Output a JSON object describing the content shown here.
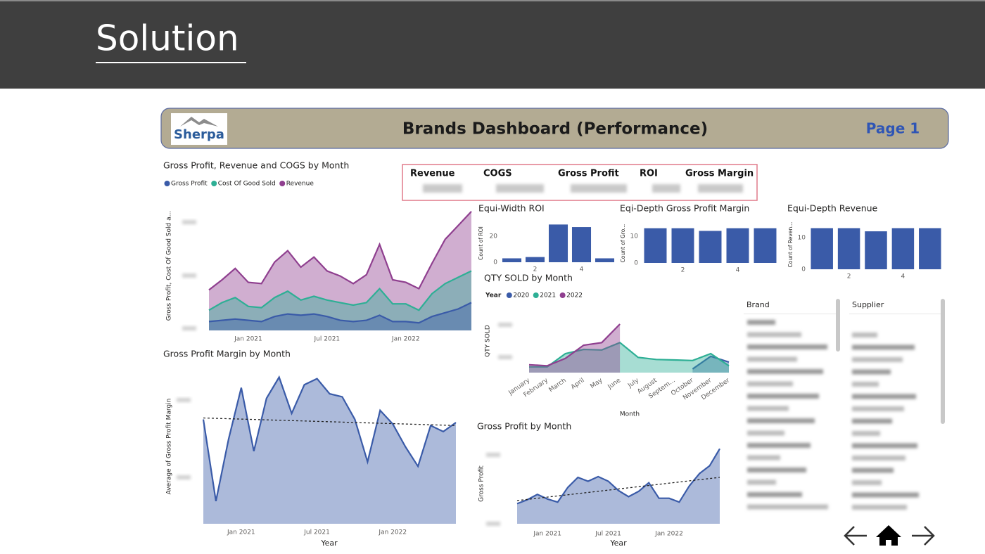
{
  "header": {
    "title": "Solution"
  },
  "dashboard": {
    "logo": "Sherpa",
    "title": "Brands Dashboard (Performance)",
    "page": "Page 1"
  },
  "kpis": [
    "Revenue",
    "COGS",
    "Gross Profit",
    "ROI",
    "Gross Margin"
  ],
  "slicers": [
    "Brand",
    "Supplier"
  ],
  "chart_data": [
    {
      "type": "area",
      "title": "Gross Profit, Revenue and COGS by Month",
      "y_label": "Gross Profit, Cost Of Good Sold a...",
      "categories": [
        null,
        null,
        null,
        "Jan 2021",
        null,
        null,
        null,
        null,
        null,
        "Jul 2021",
        null,
        null,
        null,
        null,
        null,
        "Jan 2022",
        null,
        null,
        null,
        null,
        null
      ],
      "ylim": [
        0,
        100
      ],
      "series": [
        {
          "name": "Gross Profit",
          "color": "#3a5ba8",
          "values": [
            7,
            8,
            9,
            8,
            7,
            11,
            13,
            12,
            13,
            11,
            8,
            7,
            8,
            12,
            7,
            7,
            6,
            11,
            14,
            17,
            22
          ]
        },
        {
          "name": "Cost Of Good Sold",
          "color": "#2eaf95",
          "values": [
            16,
            22,
            26,
            19,
            18,
            26,
            31,
            24,
            27,
            24,
            22,
            20,
            22,
            33,
            21,
            21,
            16,
            29,
            37,
            42,
            47
          ]
        },
        {
          "name": "Revenue",
          "color": "#8f3f8f",
          "values": [
            32,
            40,
            49,
            38,
            37,
            54,
            63,
            50,
            58,
            47,
            43,
            37,
            44,
            68,
            40,
            38,
            33,
            53,
            72,
            83,
            94
          ]
        }
      ]
    },
    {
      "type": "area",
      "title": "Gross Profit Margin by Month",
      "y_label": "Average of Gross Profit Margin",
      "x_label": "Year",
      "categories": [
        null,
        null,
        null,
        "Jan 2021",
        null,
        null,
        null,
        null,
        null,
        "Jul 2021",
        null,
        null,
        null,
        null,
        null,
        "Jan 2022",
        null,
        null,
        null,
        null,
        null
      ],
      "ylim": [
        0,
        100
      ],
      "series": [
        {
          "color": "#3a5ba8",
          "values": [
            69,
            15,
            56,
            90,
            48,
            83,
            97,
            73,
            92,
            96,
            86,
            84,
            69,
            41,
            75,
            66,
            51,
            38,
            65,
            61,
            67
          ]
        }
      ],
      "trend": [
        70,
        65
      ]
    },
    {
      "type": "bar",
      "title": "Equi-Width ROI",
      "y_label": "Count of ROI",
      "categories": [
        null,
        "2",
        null,
        "4",
        null
      ],
      "values": [
        3,
        4,
        29,
        27,
        3
      ],
      "color": "#3a5ba8",
      "ylim": [
        0,
        30
      ],
      "yticks": [
        0,
        20
      ]
    },
    {
      "type": "bar",
      "title": "Eqi-Depth Gross Profit Margin",
      "y_label": "Count of Gro...",
      "categories": [
        null,
        "2",
        null,
        "4",
        null
      ],
      "values": [
        13,
        13,
        12,
        13,
        13
      ],
      "color": "#3a5ba8",
      "ylim": [
        0,
        15
      ],
      "yticks": [
        0,
        10
      ]
    },
    {
      "type": "bar",
      "title": "Equi-Depth Revenue",
      "y_label": "Count of Reven...",
      "categories": [
        null,
        "2",
        null,
        "4",
        null
      ],
      "values": [
        13,
        13,
        12,
        13,
        13
      ],
      "color": "#3a5ba8",
      "ylim": [
        0,
        15
      ],
      "yticks": [
        0,
        10
      ]
    },
    {
      "type": "area",
      "title": "QTY SOLD by Month",
      "legend_title": "Year",
      "y_label": "QTY SOLD",
      "x_label": "Month",
      "categories": [
        "January",
        "February",
        "March",
        "April",
        "May",
        "June",
        "July",
        "August",
        "Septem...",
        "October",
        "November",
        "December"
      ],
      "ylim": [
        0,
        100
      ],
      "series": [
        {
          "name": "2020",
          "color": "#3a5ba8",
          "values": [
            null,
            null,
            null,
            null,
            null,
            null,
            null,
            null,
            null,
            7,
            31,
            20
          ]
        },
        {
          "name": "2021",
          "color": "#2eaf95",
          "values": [
            11,
            11,
            36,
            44,
            43,
            57,
            29,
            25,
            24,
            23,
            36,
            13
          ]
        },
        {
          "name": "2022",
          "color": "#8f3f8f",
          "values": [
            15,
            13,
            27,
            52,
            57,
            92,
            null,
            null,
            null,
            null,
            null,
            null
          ]
        }
      ]
    },
    {
      "type": "area",
      "title": "Gross Profit by Month",
      "y_label": "Gross Profit",
      "x_label": "Year",
      "categories": [
        null,
        null,
        null,
        "Jan 2021",
        null,
        null,
        null,
        null,
        null,
        "Jul 2021",
        null,
        null,
        null,
        null,
        null,
        "Jan 2022",
        null,
        null,
        null,
        null,
        null
      ],
      "ylim": [
        0,
        100
      ],
      "series": [
        {
          "color": "#3a5ba8",
          "values": [
            26,
            31,
            38,
            32,
            28,
            47,
            60,
            55,
            61,
            55,
            43,
            35,
            42,
            53,
            33,
            33,
            28,
            49,
            65,
            75,
            97
          ]
        }
      ],
      "trend": [
        30,
        60
      ]
    }
  ]
}
